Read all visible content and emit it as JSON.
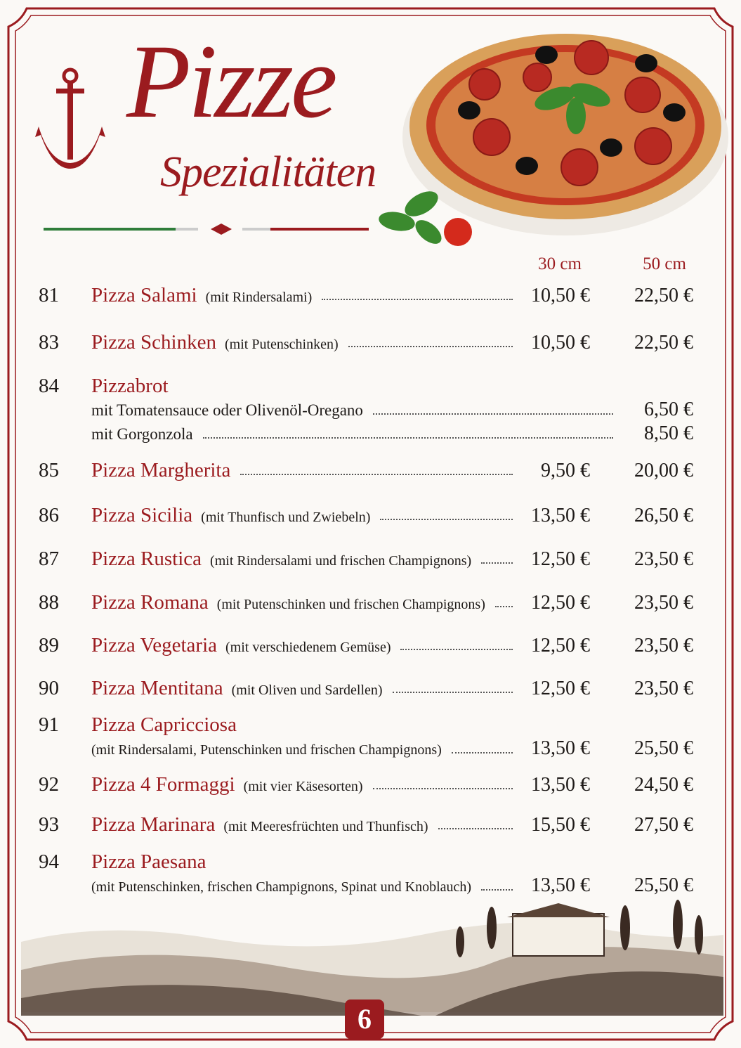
{
  "header": {
    "title": "Pizze",
    "subtitle": "Spezialitäten"
  },
  "columns": [
    "30 cm",
    "50 cm"
  ],
  "items": [
    {
      "number": "81",
      "name": "Pizza Salami",
      "description": "(mit Rindersalami)",
      "prices": [
        "10,50 €",
        "22,50 €"
      ]
    },
    {
      "number": "83",
      "name": "Pizza Schinken",
      "description": "(mit Putenschinken)",
      "prices": [
        "10,50 €",
        "22,50 €"
      ]
    },
    {
      "number": "84",
      "name": "Pizzabrot",
      "options": [
        {
          "text": "mit Tomatensauce oder Olivenöl-Oregano",
          "price": "6,50 €"
        },
        {
          "text": "mit Gorgonzola",
          "price": "8,50 €"
        }
      ]
    },
    {
      "number": "85",
      "name": "Pizza Margherita",
      "prices": [
        "9,50 €",
        "20,00 €"
      ]
    },
    {
      "number": "86",
      "name": "Pizza Sicilia",
      "description": "(mit Thunfisch und Zwiebeln)",
      "prices": [
        "13,50 €",
        "26,50 €"
      ]
    },
    {
      "number": "87",
      "name": "Pizza Rustica",
      "description": "(mit Rindersalami und frischen Champignons)",
      "prices": [
        "12,50 €",
        "23,50 €"
      ]
    },
    {
      "number": "88",
      "name": "Pizza Romana",
      "description": "(mit Putenschinken und frischen Champignons)",
      "prices": [
        "12,50 €",
        "23,50 €"
      ]
    },
    {
      "number": "89",
      "name": "Pizza Vegetaria",
      "description": "(mit verschiedenem Gemüse)",
      "prices": [
        "12,50 €",
        "23,50 €"
      ]
    },
    {
      "number": "90",
      "name": "Pizza Mentitana",
      "description": "(mit Oliven und Sardellen)",
      "prices": [
        "12,50 €",
        "23,50 €"
      ]
    },
    {
      "number": "91",
      "name": "Pizza Capricciosa",
      "description": "(mit Rindersalami, Putenschinken und frischen Champignons)",
      "prices": [
        "13,50 €",
        "25,50 €"
      ]
    },
    {
      "number": "92",
      "name": "Pizza 4 Formaggi",
      "description": "(mit vier Käsesorten)",
      "prices": [
        "13,50 €",
        "24,50 €"
      ]
    },
    {
      "number": "93",
      "name": "Pizza Marinara",
      "description": "(mit Meeresfrüchten und Thunfisch)",
      "prices": [
        "15,50 €",
        "27,50 €"
      ]
    },
    {
      "number": "94",
      "name": "Pizza Paesana",
      "description": "(mit Putenschinken, frischen Champignons, Spinat und Knoblauch)",
      "prices": [
        "13,50 €",
        "25,50 €"
      ]
    }
  ],
  "page_number": "6"
}
